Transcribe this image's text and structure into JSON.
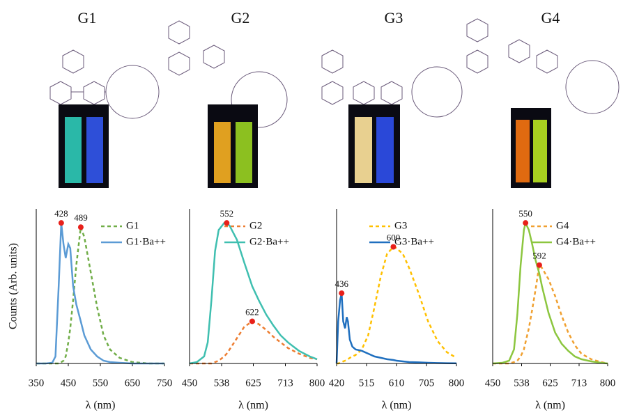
{
  "chart_data": [
    {
      "type": "line",
      "title": "G1",
      "xlabel": "λ (nm)",
      "ylabel": "Counts (Arb. units)",
      "x": [
        350,
        380,
        400,
        410,
        420,
        428,
        435,
        442,
        450,
        456,
        465,
        475,
        489,
        500,
        520,
        540,
        560,
        580,
        610,
        650,
        700,
        750
      ],
      "xlim": [
        350,
        750
      ],
      "xticks": [
        350,
        450,
        550,
        650,
        750
      ],
      "ylim": [
        0,
        1.1
      ],
      "series": [
        {
          "name": "G1",
          "color": "#70ad47",
          "dashed": true,
          "values": [
            0,
            0,
            0,
            0,
            0,
            0.01,
            0.02,
            0.05,
            0.15,
            0.25,
            0.45,
            0.7,
            0.97,
            0.9,
            0.65,
            0.4,
            0.2,
            0.1,
            0.04,
            0.01,
            0,
            0
          ]
        },
        {
          "name": "G1·Ba++",
          "color": "#5b9bd5",
          "dashed": false,
          "values": [
            0,
            0,
            0.005,
            0.05,
            0.55,
            1.0,
            0.85,
            0.75,
            0.85,
            0.82,
            0.55,
            0.42,
            0.3,
            0.2,
            0.1,
            0.05,
            0.02,
            0.01,
            0.005,
            0,
            0,
            0
          ]
        }
      ],
      "peaks": [
        {
          "x": 428,
          "y": 1.0
        },
        {
          "x": 489,
          "y": 0.97
        }
      ]
    },
    {
      "type": "line",
      "title": "G2",
      "xlabel": "λ (nm)",
      "x": [
        450,
        470,
        490,
        500,
        510,
        520,
        530,
        545,
        552,
        560,
        580,
        600,
        622,
        640,
        660,
        680,
        700,
        720,
        750,
        780,
        800
      ],
      "xlim": [
        450,
        800
      ],
      "xticks": [
        450,
        538,
        625,
        713,
        800
      ],
      "ylim": [
        0,
        1.1
      ],
      "series": [
        {
          "name": "G2",
          "color": "#ed7d31",
          "dashed": true,
          "values": [
            0,
            0,
            0,
            0,
            0,
            0.01,
            0.02,
            0.05,
            0.07,
            0.1,
            0.18,
            0.26,
            0.3,
            0.28,
            0.24,
            0.19,
            0.15,
            0.11,
            0.07,
            0.04,
            0.03
          ]
        },
        {
          "name": "G2·Ba++",
          "color": "#3fbfb0",
          "dashed": false,
          "values": [
            0,
            0.01,
            0.05,
            0.15,
            0.45,
            0.8,
            0.95,
            1.0,
            1.0,
            0.98,
            0.88,
            0.72,
            0.55,
            0.45,
            0.35,
            0.27,
            0.2,
            0.15,
            0.09,
            0.05,
            0.03
          ]
        }
      ],
      "peaks": [
        {
          "x": 552,
          "y": 1.0
        },
        {
          "x": 622,
          "y": 0.3
        }
      ]
    },
    {
      "type": "line",
      "title": "G3",
      "xlabel": "λ (nm)",
      "x": [
        420,
        425,
        431,
        436,
        441,
        447,
        452,
        456,
        462,
        470,
        480,
        500,
        520,
        540,
        560,
        580,
        600,
        610,
        630,
        650,
        680,
        710,
        740,
        770,
        800
      ],
      "xlim": [
        420,
        800
      ],
      "xticks": [
        420,
        515,
        610,
        705,
        800
      ],
      "ylim": [
        0,
        1.1
      ],
      "series": [
        {
          "name": "G3",
          "color": "#ffc000",
          "dashed": true,
          "values": [
            0,
            0,
            0.005,
            0.01,
            0.015,
            0.02,
            0.025,
            0.03,
            0.04,
            0.05,
            0.06,
            0.1,
            0.2,
            0.4,
            0.62,
            0.78,
            0.83,
            0.82,
            0.78,
            0.68,
            0.5,
            0.3,
            0.16,
            0.08,
            0.04
          ]
        },
        {
          "name": "G3·Ba++",
          "color": "#1f6fbf",
          "dashed": false,
          "values": [
            0,
            0.3,
            0.45,
            0.5,
            0.3,
            0.25,
            0.33,
            0.3,
            0.17,
            0.12,
            0.1,
            0.09,
            0.07,
            0.05,
            0.04,
            0.03,
            0.025,
            0.02,
            0.015,
            0.01,
            0.008,
            0.005,
            0.003,
            0.002,
            0.001
          ]
        }
      ],
      "peaks": [
        {
          "x": 436,
          "y": 0.5
        },
        {
          "x": 600,
          "y": 0.83
        }
      ]
    },
    {
      "type": "line",
      "title": "G4",
      "xlabel": "λ (nm)",
      "x": [
        450,
        480,
        500,
        515,
        525,
        535,
        545,
        550,
        560,
        570,
        580,
        592,
        600,
        620,
        640,
        660,
        680,
        700,
        720,
        750,
        780,
        800
      ],
      "xlim": [
        450,
        800
      ],
      "xticks": [
        450,
        538,
        625,
        713,
        800
      ],
      "ylim": [
        0,
        1.1
      ],
      "series": [
        {
          "name": "G4",
          "color": "#f0a030",
          "dashed": true,
          "values": [
            0,
            0,
            0,
            0.01,
            0.02,
            0.05,
            0.1,
            0.15,
            0.25,
            0.38,
            0.52,
            0.7,
            0.68,
            0.6,
            0.48,
            0.34,
            0.22,
            0.13,
            0.07,
            0.03,
            0.01,
            0
          ]
        },
        {
          "name": "G4·Ba++",
          "color": "#8cc63f",
          "dashed": false,
          "values": [
            0,
            0.005,
            0.02,
            0.1,
            0.35,
            0.7,
            0.95,
            1.0,
            0.95,
            0.85,
            0.74,
            0.64,
            0.55,
            0.36,
            0.22,
            0.14,
            0.09,
            0.05,
            0.03,
            0.015,
            0.005,
            0
          ]
        }
      ],
      "peaks": [
        {
          "x": 550,
          "y": 1.0
        },
        {
          "x": 592,
          "y": 0.7
        }
      ]
    }
  ]
}
